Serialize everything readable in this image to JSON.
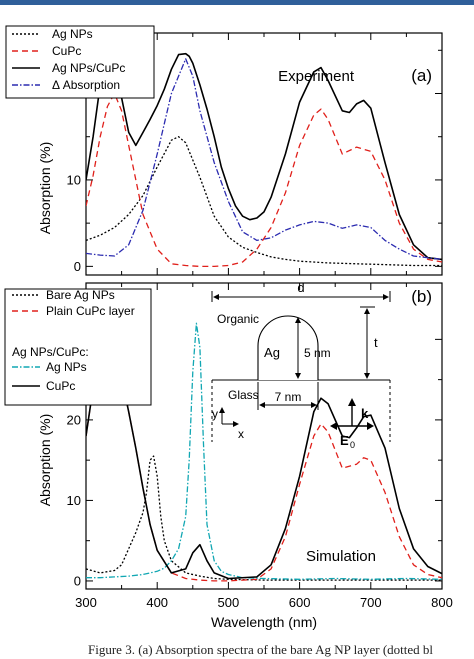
{
  "caption": "Figure 3. (a) Absorption spectra of the bare Ag NP layer (dotted bl",
  "chart_data": [
    {
      "type": "line",
      "panel_label": "(a)",
      "annotation": "Experiment",
      "ylabel": "Absorption (%)",
      "xlabel": "",
      "xlim": [
        300,
        800
      ],
      "ylim": [
        -1,
        27
      ],
      "yticks": [
        0,
        10,
        20
      ],
      "yticks_minor": [
        5,
        15,
        25
      ],
      "xticks": [
        300,
        400,
        500,
        600,
        700,
        800
      ],
      "legend_position": "top-left",
      "series": [
        {
          "name": "Ag NPs",
          "color": "#000000",
          "dash": "2,2",
          "x": [
            300,
            320,
            340,
            360,
            380,
            400,
            420,
            430,
            440,
            460,
            480,
            500,
            520,
            540,
            560,
            580,
            600,
            640,
            680,
            720,
            760,
            800
          ],
          "y": [
            3,
            3.6,
            4.5,
            6,
            8.2,
            11.5,
            14.6,
            15,
            14.3,
            10.3,
            5.8,
            3.4,
            2.2,
            1.6,
            1.1,
            0.8,
            0.6,
            0.4,
            0.3,
            0.2,
            0.1,
            0.1
          ]
        },
        {
          "name": "CuPc",
          "color": "#e0201b",
          "dash": "6,4",
          "x": [
            300,
            310,
            320,
            330,
            340,
            350,
            360,
            380,
            400,
            420,
            440,
            460,
            480,
            500,
            520,
            540,
            560,
            580,
            600,
            620,
            630,
            640,
            660,
            680,
            700,
            720,
            740,
            760,
            780,
            800
          ],
          "y": [
            7,
            10.5,
            15,
            18.5,
            20,
            18,
            14,
            6,
            2,
            0.3,
            0.1,
            0,
            0,
            0.1,
            0.5,
            2,
            4.5,
            8.5,
            14,
            17.5,
            18.2,
            17,
            13,
            13.8,
            13.3,
            10,
            5,
            2,
            0.8,
            0.5
          ]
        },
        {
          "name": "Ag NPs/CuPc",
          "color": "#000000",
          "dash": "",
          "x": [
            300,
            310,
            320,
            330,
            340,
            350,
            360,
            370,
            380,
            390,
            400,
            410,
            420,
            430,
            440,
            445,
            450,
            460,
            470,
            480,
            490,
            500,
            510,
            520,
            530,
            540,
            550,
            560,
            580,
            600,
            620,
            630,
            640,
            660,
            670,
            680,
            690,
            700,
            720,
            740,
            760,
            780,
            800
          ],
          "y": [
            10,
            15,
            21,
            22.5,
            22,
            19.5,
            15.5,
            14,
            15.5,
            17,
            18.6,
            20.5,
            22.8,
            24.5,
            24.6,
            24.3,
            23.5,
            21,
            18.2,
            15,
            11.5,
            9,
            7,
            5.8,
            5.4,
            5.6,
            6.3,
            8,
            13,
            19,
            22.5,
            23,
            21.5,
            18,
            17.8,
            18.8,
            19.2,
            18.3,
            12,
            6,
            2.5,
            1,
            0.8
          ]
        },
        {
          "name": "Δ Absorption",
          "color": "#2b2bb0",
          "dash": "6,2,1.5,2",
          "x": [
            300,
            320,
            340,
            360,
            380,
            400,
            420,
            440,
            450,
            460,
            480,
            500,
            520,
            540,
            560,
            580,
            600,
            620,
            640,
            660,
            680,
            700,
            720,
            740,
            760,
            780,
            800
          ],
          "y": [
            1.5,
            1.3,
            1.2,
            2.5,
            6.5,
            13,
            20,
            24,
            22,
            18,
            12,
            7.5,
            4,
            3,
            3.3,
            4.2,
            4.8,
            5.2,
            5,
            4.4,
            4.8,
            4.5,
            3,
            2,
            1.2,
            1,
            0.8
          ]
        }
      ]
    },
    {
      "type": "line",
      "panel_label": "(b)",
      "annotation": "Simulation",
      "ylabel": "Absorption (%)",
      "xlabel": "Wavelength (nm)",
      "xlim": [
        300,
        800
      ],
      "ylim": [
        -1,
        37
      ],
      "yticks": [
        0,
        10,
        20,
        30
      ],
      "yticks_minor": [
        5,
        15,
        25
      ],
      "xticks": [
        300,
        400,
        500,
        600,
        700,
        800
      ],
      "xtick_labels": [
        "300",
        "400",
        "500",
        "600",
        "700",
        "800"
      ],
      "legend_position": "top-left",
      "legend_subheading": "Ag NPs/CuPc:",
      "series": [
        {
          "name": "Bare Ag NPs",
          "color": "#000000",
          "dash": "2,2",
          "x": [
            300,
            320,
            340,
            350,
            360,
            370,
            380,
            385,
            390,
            395,
            400,
            405,
            410,
            420,
            440,
            460,
            480,
            500,
            550,
            600,
            700,
            800
          ],
          "y": [
            1.5,
            1,
            1.3,
            2,
            4,
            6,
            8.5,
            11,
            15,
            15.5,
            13,
            8,
            5,
            2.5,
            1,
            0.6,
            0.3,
            0.2,
            0.1,
            0.1,
            0.1,
            0.1
          ]
        },
        {
          "name": "Plain CuPc layer",
          "color": "#e0201b",
          "dash": "6,4",
          "x": [
            300,
            310,
            320,
            330,
            340,
            350,
            360,
            370,
            380,
            390,
            400,
            420,
            440,
            460,
            480,
            500,
            540,
            560,
            580,
            600,
            620,
            630,
            640,
            660,
            680,
            690,
            700,
            720,
            740,
            760,
            780,
            800
          ],
          "y": [
            18,
            24,
            27,
            28.3,
            27.6,
            25.2,
            21,
            16.5,
            11.5,
            7,
            3.8,
            1,
            0.3,
            0.1,
            0,
            0,
            0.2,
            1.5,
            5.5,
            12,
            18,
            19.5,
            18.5,
            14,
            14.5,
            15.3,
            15,
            11,
            5.5,
            2,
            0.8,
            0.4
          ]
        },
        {
          "name": "Ag NPs",
          "color": "#11a7b3",
          "dash": "6,2,1.5,2",
          "x": [
            300,
            320,
            340,
            360,
            380,
            400,
            410,
            420,
            430,
            440,
            445,
            450,
            455,
            460,
            465,
            470,
            480,
            490,
            500,
            520,
            550,
            600,
            650,
            700,
            750,
            800
          ],
          "y": [
            0.4,
            0.4,
            0.5,
            0.6,
            0.8,
            1.2,
            1.6,
            2.5,
            4,
            8,
            15,
            26,
            32,
            29,
            17,
            7,
            2.5,
            1.2,
            0.8,
            0.4,
            0.3,
            0.2,
            0.3,
            0.2,
            0.3,
            0.2
          ]
        },
        {
          "name": "CuPc",
          "color": "#000000",
          "dash": "",
          "x": [
            300,
            310,
            320,
            330,
            340,
            350,
            360,
            370,
            380,
            390,
            400,
            420,
            440,
            450,
            460,
            470,
            480,
            500,
            540,
            560,
            580,
            600,
            620,
            630,
            640,
            660,
            670,
            680,
            690,
            700,
            720,
            740,
            760,
            780,
            800
          ],
          "y": [
            18,
            24,
            27,
            28.3,
            27.6,
            25.2,
            21,
            16.5,
            11.5,
            7,
            3.8,
            1,
            1.5,
            3.5,
            4.5,
            2.5,
            1,
            0.3,
            0.5,
            2,
            6.5,
            13,
            21,
            22.7,
            22,
            18,
            17.8,
            19,
            20.4,
            20.6,
            16.5,
            9,
            4,
            1.8,
            0.9
          ]
        }
      ]
    }
  ],
  "inset": {
    "dimension_d": "d",
    "label_organic": "Organic",
    "label_ag": "Ag",
    "label_height": "5 nm",
    "label_width": "7 nm",
    "dimension_t": "t",
    "label_glass": "Glass",
    "axis_y": "y",
    "axis_x": "x",
    "wavevector": "k",
    "field": "E",
    "field_subscript": "0"
  }
}
